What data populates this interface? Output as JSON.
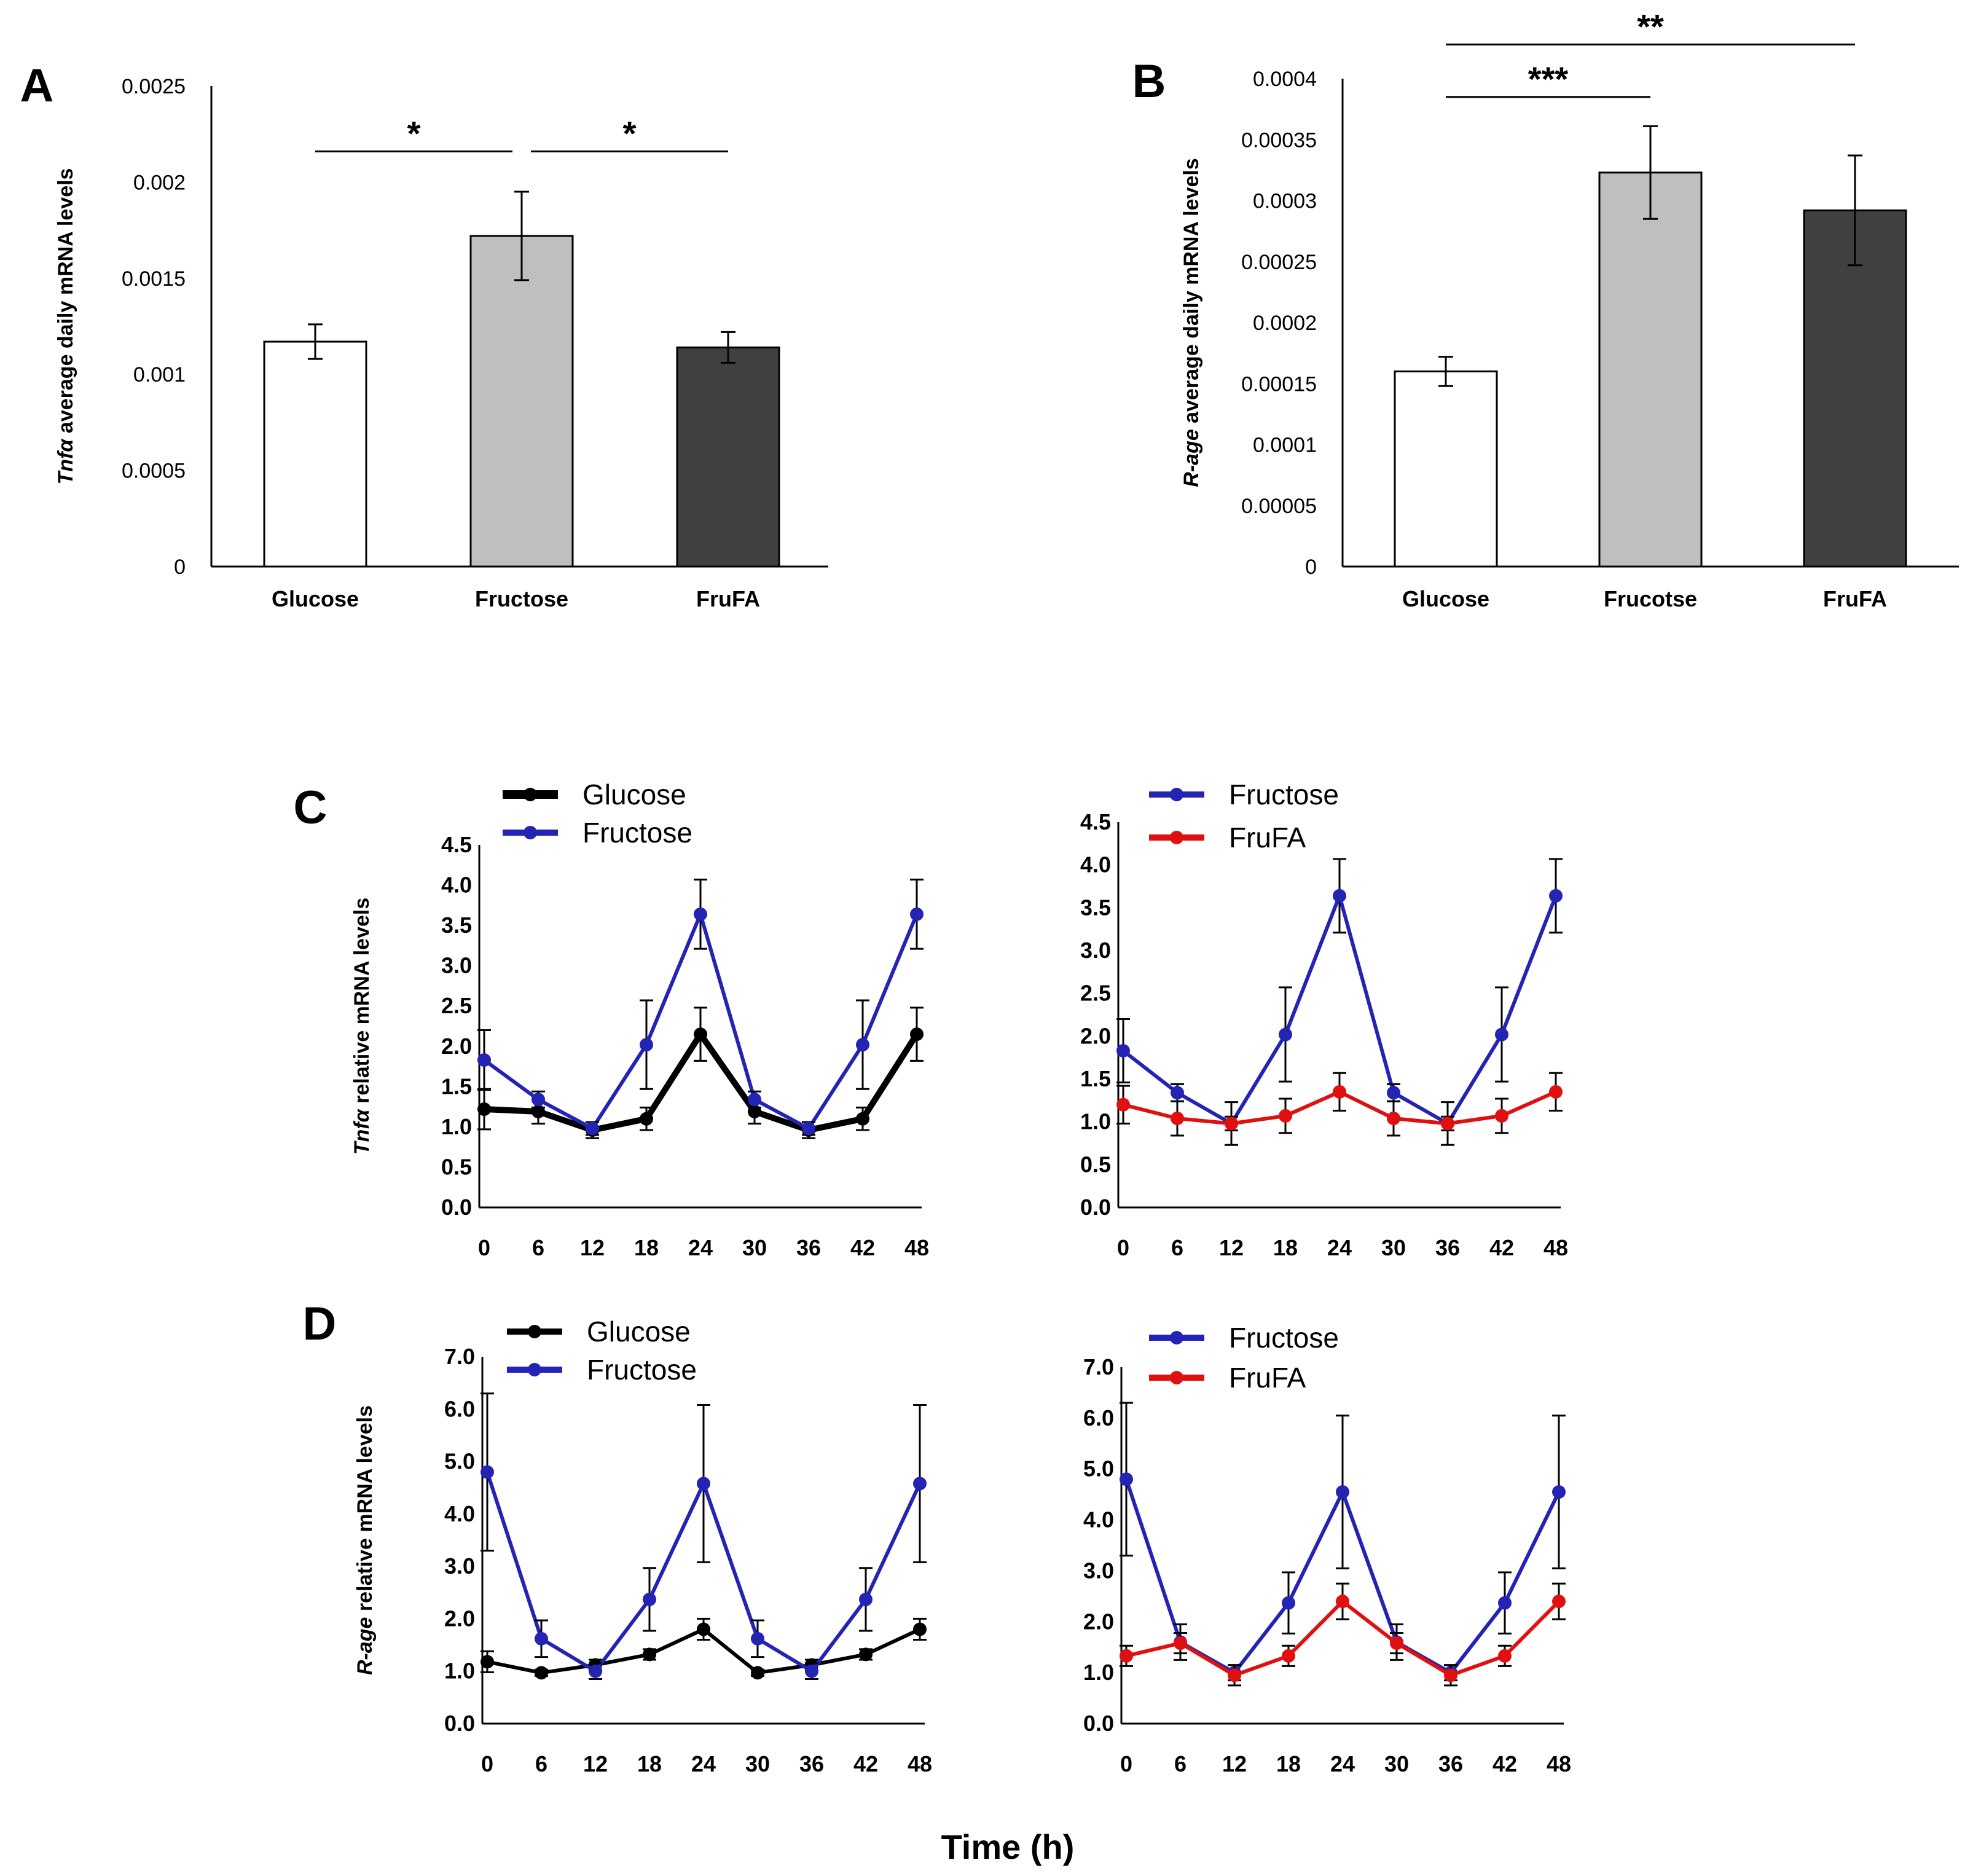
{
  "x_axis_title": "Time (h)",
  "chart_data": [
    {
      "id": "A",
      "panel_label": "A",
      "type": "bar",
      "categories": [
        "Glucose",
        "Fructose",
        "FruFA"
      ],
      "values": [
        0.00117,
        0.00172,
        0.00114
      ],
      "errors": [
        9e-05,
        0.00023,
        8e-05
      ],
      "colors": [
        "#ffffff",
        "#bfbfbf",
        "#404040"
      ],
      "ylim": [
        0,
        0.0025
      ],
      "yticks": [
        "0",
        "0.0005",
        "0.001",
        "0.0015",
        "0.002",
        "0.0025"
      ],
      "ylabel_italic": "Tnfα",
      "ylabel_rest": " average daily mRNA levels",
      "significance": [
        {
          "from": 0,
          "to": 1,
          "label": "*",
          "level": 0.00216
        },
        {
          "from": 1,
          "to": 2,
          "label": "*",
          "level": 0.00216
        }
      ]
    },
    {
      "id": "B",
      "panel_label": "B",
      "type": "bar",
      "categories": [
        "Glucose",
        "Frucotse",
        "FruFA"
      ],
      "values": [
        0.00016,
        0.000323,
        0.000292
      ],
      "errors": [
        1.2e-05,
        3.8e-05,
        4.5e-05
      ],
      "colors": [
        "#ffffff",
        "#bfbfbf",
        "#404040"
      ],
      "ylim": [
        0,
        0.0004
      ],
      "yticks": [
        "0",
        "0.00005",
        "0.0001",
        "0.00015",
        "0.0002",
        "0.00025",
        "0.0003",
        "0.00035",
        "0.0004"
      ],
      "ylabel_italic": "R-age",
      "ylabel_rest": " average daily mRNA levels",
      "significance": [
        {
          "from": 0,
          "to": 1,
          "label": "***",
          "level": 0.000385
        },
        {
          "from": 0,
          "to": 2,
          "label": "**",
          "level": 0.000428
        }
      ]
    },
    {
      "id": "C1",
      "panel_label": "C",
      "type": "line",
      "x": [
        0,
        6,
        12,
        18,
        24,
        30,
        36,
        42,
        48
      ],
      "ylim": [
        0,
        4.5
      ],
      "yticks": [
        "0.0",
        "0.5",
        "1.0",
        "1.5",
        "2.0",
        "2.5",
        "3.0",
        "3.5",
        "4.0",
        "4.5"
      ],
      "ylabel_italic": "Tnfα",
      "ylabel_rest": " relative mRNA levels",
      "series": [
        {
          "name": "Glucose",
          "color": "#000000",
          "width": 10,
          "values": [
            1.22,
            1.19,
            0.96,
            1.1,
            2.15,
            1.19,
            0.96,
            1.1,
            2.15
          ],
          "errors": [
            0.25,
            0.15,
            0.1,
            0.14,
            0.33,
            0.15,
            0.1,
            0.14,
            0.33
          ]
        },
        {
          "name": "Fructose",
          "color": "#2424b4",
          "width": 6,
          "values": [
            1.83,
            1.34,
            0.98,
            2.02,
            3.64,
            1.34,
            0.98,
            2.02,
            3.64
          ],
          "errors": [
            0.37,
            0.1,
            0.08,
            0.55,
            0.43,
            0.1,
            0.08,
            0.55,
            0.43
          ]
        }
      ]
    },
    {
      "id": "C2",
      "panel_label": "",
      "type": "line",
      "x": [
        0,
        6,
        12,
        18,
        24,
        30,
        36,
        42,
        48
      ],
      "ylim": [
        0,
        4.5
      ],
      "yticks": [
        "0.0",
        "0.5",
        "1.0",
        "1.5",
        "2.0",
        "2.5",
        "3.0",
        "3.5",
        "4.0",
        "4.5"
      ],
      "ylabel_italic": "",
      "ylabel_rest": "",
      "series": [
        {
          "name": "Fructose",
          "color": "#2424b4",
          "width": 6,
          "values": [
            1.83,
            1.34,
            0.98,
            2.02,
            3.64,
            1.34,
            0.98,
            2.02,
            3.64
          ],
          "errors": [
            0.37,
            0.1,
            0.08,
            0.55,
            0.43,
            0.1,
            0.08,
            0.55,
            0.43
          ]
        },
        {
          "name": "FruFA",
          "color": "#e01010",
          "width": 6,
          "values": [
            1.2,
            1.04,
            0.98,
            1.07,
            1.35,
            1.04,
            0.98,
            1.07,
            1.35
          ],
          "errors": [
            0.22,
            0.2,
            0.25,
            0.2,
            0.22,
            0.2,
            0.25,
            0.2,
            0.22
          ]
        }
      ]
    },
    {
      "id": "D1",
      "panel_label": "D",
      "type": "line",
      "x": [
        0,
        6,
        12,
        18,
        24,
        30,
        36,
        42,
        48
      ],
      "ylim": [
        0,
        7
      ],
      "yticks": [
        "0.0",
        "1.0",
        "2.0",
        "3.0",
        "4.0",
        "5.0",
        "6.0",
        "7.0"
      ],
      "ylabel_italic": "R-age",
      "ylabel_rest": " relative mRNA levels",
      "series": [
        {
          "name": "Glucose",
          "color": "#000000",
          "width": 6,
          "values": [
            1.18,
            0.97,
            1.12,
            1.32,
            1.8,
            0.97,
            1.12,
            1.32,
            1.8
          ],
          "errors": [
            0.2,
            0.06,
            0.1,
            0.1,
            0.2,
            0.06,
            0.1,
            0.1,
            0.2
          ]
        },
        {
          "name": "Fructose",
          "color": "#2424b4",
          "width": 6,
          "values": [
            4.8,
            1.62,
            1.0,
            2.37,
            4.58,
            1.62,
            1.0,
            2.37,
            4.58
          ],
          "errors": [
            1.5,
            0.35,
            0.15,
            0.6,
            1.5,
            0.35,
            0.15,
            0.6,
            1.5
          ]
        }
      ]
    },
    {
      "id": "D2",
      "panel_label": "",
      "type": "line",
      "x": [
        0,
        6,
        12,
        18,
        24,
        30,
        36,
        42,
        48
      ],
      "ylim": [
        0,
        7
      ],
      "yticks": [
        "0.0",
        "1.0",
        "2.0",
        "3.0",
        "4.0",
        "5.0",
        "6.0",
        "7.0"
      ],
      "ylabel_italic": "",
      "ylabel_rest": "",
      "series": [
        {
          "name": "Fructose",
          "color": "#2424b4",
          "width": 6,
          "values": [
            4.8,
            1.6,
            1.0,
            2.37,
            4.55,
            1.6,
            1.0,
            2.37,
            4.55
          ],
          "errors": [
            1.5,
            0.35,
            0.15,
            0.6,
            1.5,
            0.35,
            0.15,
            0.6,
            1.5
          ]
        },
        {
          "name": "FruFA",
          "color": "#e01010",
          "width": 6,
          "values": [
            1.33,
            1.58,
            0.95,
            1.33,
            2.4,
            1.58,
            0.95,
            1.33,
            2.4
          ],
          "errors": [
            0.2,
            0.2,
            0.2,
            0.2,
            0.35,
            0.2,
            0.2,
            0.2,
            0.35
          ]
        }
      ]
    }
  ]
}
